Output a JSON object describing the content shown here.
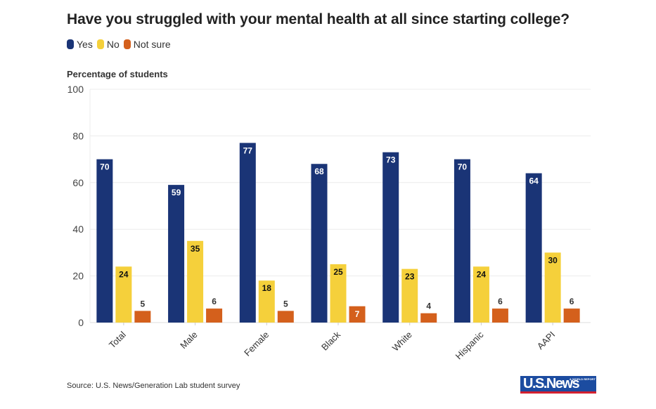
{
  "chart_data": {
    "type": "bar",
    "title": "Have you struggled with your mental health at all since starting college?",
    "ylabel": "Percentage of students",
    "xlabel": "",
    "ylim": [
      0,
      100
    ],
    "yticks": [
      0,
      20,
      40,
      60,
      80,
      100
    ],
    "grid": true,
    "legend_position": "top-left",
    "categories": [
      "Total",
      "Male",
      "Female",
      "Black",
      "White",
      "Hispanic",
      "AAPI"
    ],
    "series": [
      {
        "name": "Yes",
        "color": "#1a3476",
        "label_color": "#ffffff",
        "values": [
          70,
          59,
          77,
          68,
          73,
          70,
          64
        ]
      },
      {
        "name": "No",
        "color": "#f5d03b",
        "label_color": "#111111",
        "values": [
          24,
          35,
          18,
          25,
          23,
          24,
          30
        ]
      },
      {
        "name": "Not sure",
        "color": "#d4601c",
        "label_color": "#333333",
        "values": [
          5,
          6,
          5,
          7,
          4,
          6,
          6
        ]
      }
    ],
    "source": "Source: U.S. News/Generation Lab student survey"
  },
  "branding": {
    "logo_text": "U.S.News",
    "logo_subtext": "& WORLD REPORT"
  }
}
